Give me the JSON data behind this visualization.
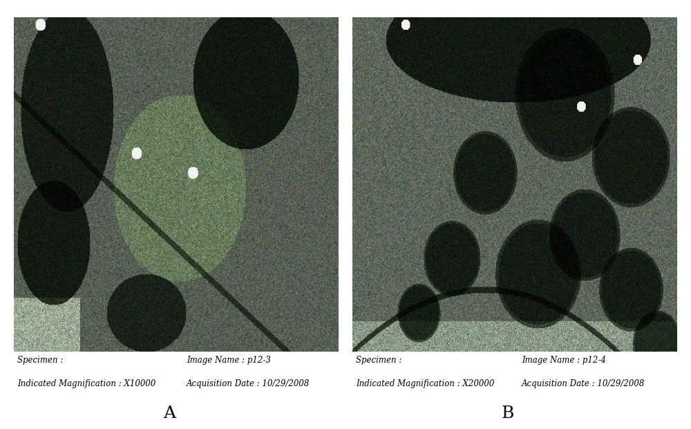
{
  "figure_width": 10.0,
  "figure_height": 6.21,
  "background_color": "#ffffff",
  "panel_A": {
    "label": "A",
    "specimen": "Specimen :",
    "image_name": "Image Name : p12-3",
    "magnification": "Indicated Magnification : X10000",
    "acquisition": "Acquisition Date : 10/29/2008"
  },
  "panel_B": {
    "label": "B",
    "specimen": "Specimen :",
    "image_name": "Image Name : p12-4",
    "magnification": "Indicated Magnification : X20000",
    "acquisition": "Acquisition Date : 10/29/2008"
  },
  "text_color": "#000000",
  "text_fontsize": 8.5,
  "label_fontsize": 18
}
